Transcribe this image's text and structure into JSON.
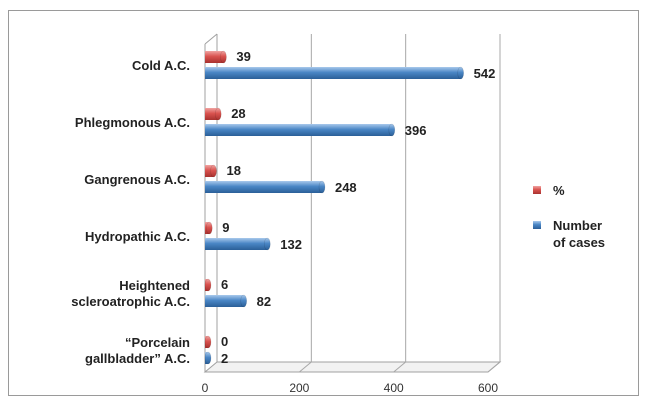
{
  "chart_data": {
    "type": "bar",
    "orientation": "horizontal",
    "categories": [
      "Cold A.C.",
      "Phlegmonous A.C.",
      "Gangrenous A.C.",
      "Hydropathic A.C.",
      "Heightened scleroatrophic A.C.",
      "“Porcelain gallbladder” A.C."
    ],
    "category_lines": [
      [
        "Cold A.C."
      ],
      [
        "Phlegmonous A.C."
      ],
      [
        "Gangrenous A.C."
      ],
      [
        "Hydropathic A.C."
      ],
      [
        "Heightened",
        "scleroatrophic A.C."
      ],
      [
        "“Porcelain",
        "gallbladder” A.C."
      ]
    ],
    "series": [
      {
        "name": "%",
        "color": "#d9534f",
        "values": [
          39,
          28,
          18,
          9,
          6,
          0
        ]
      },
      {
        "name": "Number of cases",
        "color": "#4a86c5",
        "values": [
          542,
          396,
          248,
          132,
          82,
          2
        ]
      }
    ],
    "legend_lines": [
      [
        "%"
      ],
      [
        "Number",
        "of cases"
      ]
    ],
    "xlim": [
      0,
      600
    ],
    "xticks": [
      "0",
      "200",
      "400",
      "600"
    ],
    "grid": true,
    "legend_position": "right",
    "title": "",
    "xlabel": "",
    "ylabel": ""
  }
}
